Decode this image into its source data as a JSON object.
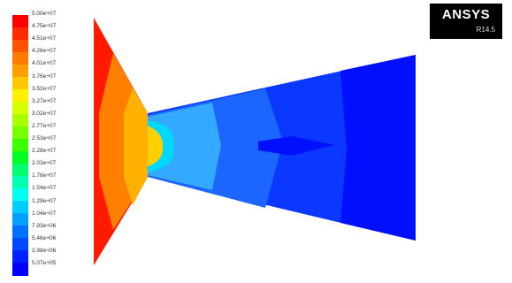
{
  "window": {
    "brand": "ANSYS",
    "version": "R14.5"
  },
  "legend": {
    "labels": [
      "5.00e+07",
      "4.75e+07",
      "4.51e+07",
      "4.26e+07",
      "4.01e+07",
      "3.76e+07",
      "3.52e+07",
      "3.27e+07",
      "3.02e+07",
      "2.77e+07",
      "2.53e+07",
      "2.28e+07",
      "2.03e+07",
      "1.78e+07",
      "1.54e+07",
      "1.29e+07",
      "1.04e+07",
      "7.93e+06",
      "5.46e+06",
      "2.98e+06",
      "5.07e+05"
    ],
    "colors": [
      "#ff0000",
      "#ff2a00",
      "#ff5200",
      "#ff7a00",
      "#ffa000",
      "#ffc800",
      "#fff000",
      "#d8ff00",
      "#a8ff00",
      "#78ff00",
      "#3cff00",
      "#00ff20",
      "#00ff70",
      "#00ffb0",
      "#00ffee",
      "#00ccff",
      "#00a0ff",
      "#0070ff",
      "#0048ff",
      "#0020ff",
      "#0000ff"
    ]
  },
  "contour_colors": {
    "red": "#ff1a00",
    "orange": "#ff8000",
    "amber": "#ffb000",
    "yellow": "#ffd000",
    "cyan": "#00d8ff",
    "sky": "#33aaff",
    "light_blue": "#0096ff",
    "mid_blue": "#1a66ff",
    "blue": "#0a38ff",
    "deep_blue": "#0010ff"
  }
}
